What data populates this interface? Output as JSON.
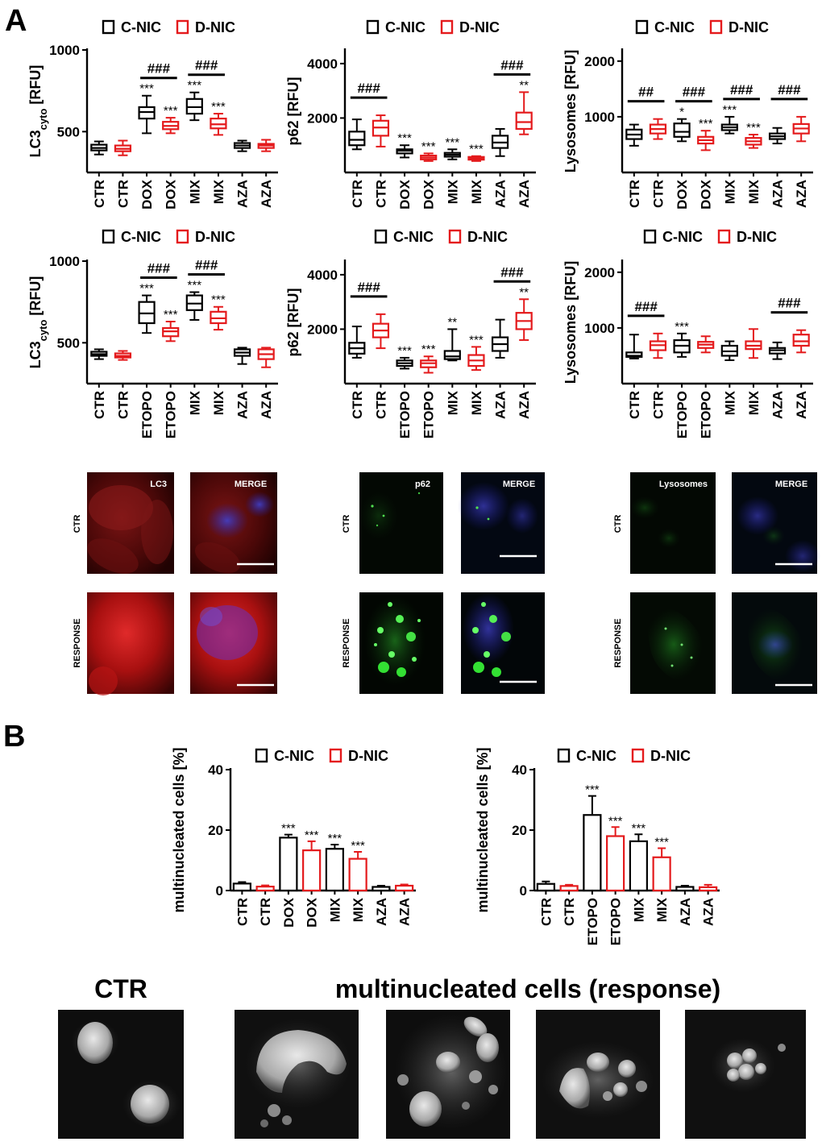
{
  "panel_labels": {
    "a": "A",
    "b": "B"
  },
  "colors": {
    "c_nic": "#000000",
    "d_nic": "#e41a1c"
  },
  "legend": {
    "c_nic": "C-NIC",
    "d_nic": "D-NIC"
  },
  "chart_data": [
    {
      "id": "a1",
      "type": "box",
      "ylabel_main": "LC3",
      "ylabel_sub": "cyto",
      "ylabel_tail": " [RFU]",
      "ylim": [
        250,
        1000
      ],
      "yticks": [
        500,
        1000
      ],
      "categories": [
        "CTR",
        "CTR",
        "DOX",
        "DOX",
        "MIX",
        "MIX",
        "AZA",
        "AZA"
      ],
      "groups": [
        "C-NIC",
        "D-NIC",
        "C-NIC",
        "D-NIC",
        "C-NIC",
        "D-NIC",
        "C-NIC",
        "D-NIC"
      ],
      "boxes": [
        [
          360,
          385,
          400,
          420,
          440
        ],
        [
          355,
          380,
          395,
          415,
          445
        ],
        [
          490,
          580,
          620,
          650,
          720
        ],
        [
          490,
          515,
          535,
          560,
          585
        ],
        [
          570,
          610,
          650,
          700,
          740
        ],
        [
          480,
          520,
          545,
          580,
          610
        ],
        [
          380,
          400,
          415,
          430,
          445
        ],
        [
          380,
          400,
          415,
          425,
          450
        ]
      ],
      "stars": [
        "",
        "",
        "***",
        "***",
        "***",
        "***",
        "",
        ""
      ],
      "hashes": [
        {
          "between": [
            2,
            3
          ],
          "label": "###"
        },
        {
          "between": [
            4,
            5
          ],
          "label": "###"
        }
      ]
    },
    {
      "id": "a2",
      "type": "box",
      "ylabel_main": "p62",
      "ylabel_sub": "",
      "ylabel_tail": " [RFU]",
      "ylim": [
        0,
        4500
      ],
      "yticks": [
        2000,
        4000
      ],
      "categories": [
        "CTR",
        "CTR",
        "DOX",
        "DOX",
        "MIX",
        "MIX",
        "AZA",
        "AZA"
      ],
      "groups": [
        "C-NIC",
        "D-NIC",
        "C-NIC",
        "D-NIC",
        "C-NIC",
        "D-NIC",
        "C-NIC",
        "D-NIC"
      ],
      "boxes": [
        [
          850,
          1000,
          1200,
          1500,
          1950
        ],
        [
          950,
          1350,
          1650,
          1900,
          2100
        ],
        [
          550,
          700,
          800,
          850,
          1000
        ],
        [
          420,
          480,
          550,
          620,
          700
        ],
        [
          480,
          580,
          650,
          720,
          850
        ],
        [
          420,
          470,
          520,
          570,
          600
        ],
        [
          600,
          900,
          1100,
          1350,
          1600
        ],
        [
          1400,
          1600,
          1850,
          2200,
          2950
        ]
      ],
      "stars": [
        "",
        "",
        "***",
        "***",
        "***",
        "***",
        "",
        "**"
      ],
      "hashes": [
        {
          "between": [
            0,
            1
          ],
          "label": "###"
        },
        {
          "between": [
            6,
            7
          ],
          "label": "###"
        }
      ]
    },
    {
      "id": "a3",
      "type": "box",
      "ylabel_main": "Lysosomes",
      "ylabel_sub": "",
      "ylabel_tail": " [RFU]",
      "ylim": [
        0,
        2200
      ],
      "yticks": [
        1000,
        2000
      ],
      "categories": [
        "CTR",
        "CTR",
        "DOX",
        "DOX",
        "MIX",
        "MIX",
        "AZA",
        "AZA"
      ],
      "groups": [
        "C-NIC",
        "D-NIC",
        "C-NIC",
        "D-NIC",
        "C-NIC",
        "D-NIC",
        "C-NIC",
        "D-NIC"
      ],
      "boxes": [
        [
          480,
          600,
          680,
          770,
          860
        ],
        [
          600,
          700,
          780,
          860,
          960
        ],
        [
          560,
          640,
          730,
          880,
          960
        ],
        [
          400,
          520,
          580,
          640,
          750
        ],
        [
          700,
          760,
          810,
          860,
          1000
        ],
        [
          440,
          500,
          560,
          620,
          680
        ],
        [
          520,
          600,
          650,
          700,
          800
        ],
        [
          560,
          700,
          790,
          870,
          1000
        ]
      ],
      "stars": [
        "",
        "",
        "*",
        "***",
        "***",
        "***",
        "",
        ""
      ],
      "hashes": [
        {
          "between": [
            0,
            1
          ],
          "label": "##"
        },
        {
          "between": [
            2,
            3
          ],
          "label": "###"
        },
        {
          "between": [
            4,
            5
          ],
          "label": "###"
        },
        {
          "between": [
            6,
            7
          ],
          "label": "###"
        }
      ]
    },
    {
      "id": "a4",
      "type": "box",
      "ylabel_main": "LC3",
      "ylabel_sub": "cyto",
      "ylabel_tail": " [RFU]",
      "ylim": [
        250,
        1000
      ],
      "yticks": [
        500,
        1000
      ],
      "categories": [
        "CTR",
        "CTR",
        "ETOPO",
        "ETOPO",
        "MIX",
        "MIX",
        "AZA",
        "AZA"
      ],
      "groups": [
        "C-NIC",
        "D-NIC",
        "C-NIC",
        "D-NIC",
        "C-NIC",
        "D-NIC",
        "C-NIC",
        "D-NIC"
      ],
      "boxes": [
        [
          400,
          420,
          430,
          445,
          460
        ],
        [
          395,
          410,
          420,
          435,
          450
        ],
        [
          560,
          620,
          680,
          750,
          790
        ],
        [
          510,
          540,
          570,
          590,
          630
        ],
        [
          640,
          700,
          740,
          790,
          810
        ],
        [
          580,
          620,
          650,
          690,
          720
        ],
        [
          370,
          420,
          440,
          460,
          470
        ],
        [
          350,
          400,
          430,
          460,
          470
        ]
      ],
      "stars": [
        "",
        "",
        "***",
        "***",
        "***",
        "***",
        "",
        ""
      ],
      "hashes": [
        {
          "between": [
            2,
            3
          ],
          "label": "###"
        },
        {
          "between": [
            4,
            5
          ],
          "label": "###"
        }
      ]
    },
    {
      "id": "a5",
      "type": "box",
      "ylabel_main": "p62",
      "ylabel_sub": "",
      "ylabel_tail": " [RFU]",
      "ylim": [
        0,
        4500
      ],
      "yticks": [
        2000,
        4000
      ],
      "categories": [
        "CTR",
        "CTR",
        "ETOPO",
        "ETOPO",
        "MIX",
        "MIX",
        "AZA",
        "AZA"
      ],
      "groups": [
        "C-NIC",
        "D-NIC",
        "C-NIC",
        "D-NIC",
        "C-NIC",
        "D-NIC",
        "C-NIC",
        "D-NIC"
      ],
      "boxes": [
        [
          950,
          1100,
          1300,
          1500,
          2100
        ],
        [
          1300,
          1700,
          1950,
          2200,
          2550
        ],
        [
          550,
          650,
          750,
          850,
          950
        ],
        [
          400,
          600,
          750,
          850,
          1000
        ],
        [
          850,
          900,
          1000,
          1200,
          2000
        ],
        [
          500,
          650,
          850,
          1050,
          1350
        ],
        [
          950,
          1200,
          1450,
          1700,
          2350
        ],
        [
          1600,
          2000,
          2300,
          2600,
          3100
        ]
      ],
      "stars": [
        "",
        "",
        "***",
        "***",
        "**",
        "***",
        "",
        "**"
      ],
      "hashes": [
        {
          "between": [
            0,
            1
          ],
          "label": "###"
        },
        {
          "between": [
            6,
            7
          ],
          "label": "###"
        }
      ]
    },
    {
      "id": "a6",
      "type": "box",
      "ylabel_main": "Lysosomes",
      "ylabel_sub": "",
      "ylabel_tail": " [RFU]",
      "ylim": [
        0,
        2200
      ],
      "yticks": [
        1000,
        2000
      ],
      "categories": [
        "CTR",
        "CTR",
        "ETOPO",
        "ETOPO",
        "MIX",
        "MIX",
        "AZA",
        "AZA"
      ],
      "groups": [
        "C-NIC",
        "D-NIC",
        "C-NIC",
        "D-NIC",
        "C-NIC",
        "D-NIC",
        "C-NIC",
        "D-NIC"
      ],
      "boxes": [
        [
          450,
          480,
          500,
          560,
          880
        ],
        [
          460,
          600,
          690,
          760,
          900
        ],
        [
          480,
          560,
          680,
          780,
          900
        ],
        [
          560,
          640,
          700,
          750,
          850
        ],
        [
          420,
          500,
          580,
          680,
          760
        ],
        [
          460,
          620,
          680,
          760,
          980
        ],
        [
          440,
          540,
          600,
          640,
          740
        ],
        [
          560,
          680,
          760,
          880,
          960
        ]
      ],
      "stars": [
        "",
        "",
        "***",
        "",
        "",
        "",
        "",
        ""
      ],
      "hashes": [
        {
          "between": [
            0,
            1
          ],
          "label": "###"
        },
        {
          "between": [
            6,
            7
          ],
          "label": "###"
        }
      ]
    },
    {
      "id": "b1",
      "type": "bar",
      "ylabel": "multinucleated cells [%]",
      "ylim": [
        0,
        40
      ],
      "yticks": [
        0,
        20,
        40
      ],
      "categories": [
        "CTR",
        "CTR",
        "DOX",
        "DOX",
        "MIX",
        "MIX",
        "AZA",
        "AZA"
      ],
      "groups": [
        "C-NIC",
        "D-NIC",
        "C-NIC",
        "D-NIC",
        "C-NIC",
        "D-NIC",
        "C-NIC",
        "D-NIC"
      ],
      "values": [
        2.3,
        1.3,
        17.5,
        13.3,
        13.8,
        10.5,
        1.2,
        1.6
      ],
      "errors": [
        0.5,
        0.4,
        1.0,
        3.0,
        1.4,
        2.3,
        0.4,
        0.4
      ],
      "stars": [
        "",
        "",
        "***",
        "***",
        "***",
        "***",
        "",
        ""
      ]
    },
    {
      "id": "b2",
      "type": "bar",
      "ylabel": "multinucleated cells [%]",
      "ylim": [
        0,
        40
      ],
      "yticks": [
        0,
        20,
        40
      ],
      "categories": [
        "CTR",
        "CTR",
        "ETOPO",
        "ETOPO",
        "MIX",
        "MIX",
        "AZA",
        "AZA"
      ],
      "groups": [
        "C-NIC",
        "D-NIC",
        "C-NIC",
        "D-NIC",
        "C-NIC",
        "D-NIC",
        "C-NIC",
        "D-NIC"
      ],
      "values": [
        2.2,
        1.5,
        25.0,
        18.0,
        16.3,
        11.0,
        1.2,
        1.1
      ],
      "errors": [
        0.8,
        0.4,
        6.3,
        3.0,
        2.3,
        3.0,
        0.4,
        0.8
      ],
      "stars": [
        "",
        "",
        "***",
        "***",
        "***",
        "***",
        "",
        ""
      ]
    }
  ],
  "micrographs": {
    "row_ctr": "CTR",
    "row_response": "RESPONSE",
    "merge": "MERGE",
    "groups": [
      {
        "id": "lc3",
        "label": "LC3",
        "color": "#d01818"
      },
      {
        "id": "p62",
        "label": "p62",
        "color": "#22c022"
      },
      {
        "id": "lys",
        "label": "Lysosomes",
        "color": "#30b030"
      }
    ]
  },
  "nuclei": {
    "ctr_title": "CTR",
    "response_title": "multinucleated cells (response)"
  }
}
